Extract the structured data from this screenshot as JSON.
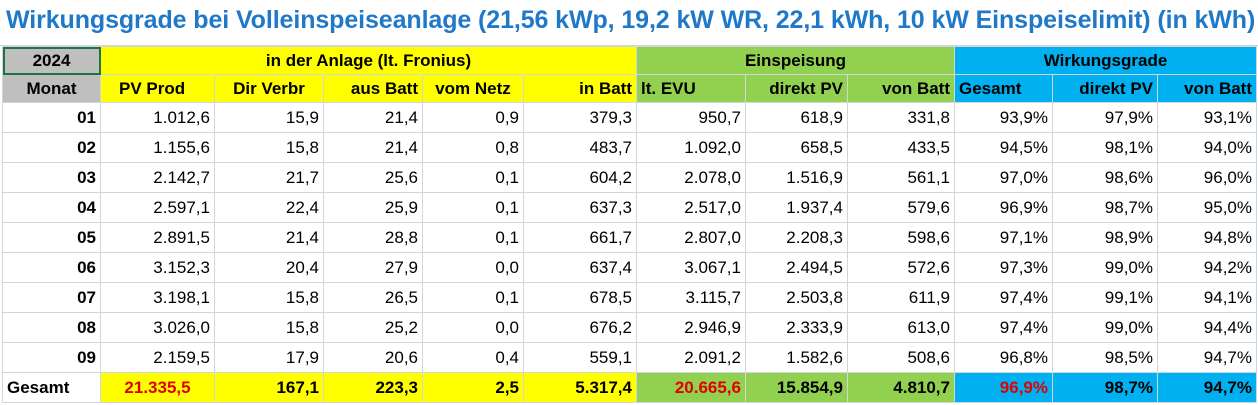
{
  "title": "Wirkungsgrade bei Volleinspeiseanlage (21,56 kWp, 19,2 kW WR, 22,1 kWh, 10 kW Einspeiselimit) (in kWh)",
  "header_row1": {
    "year": "2024",
    "group_anlage": "in der Anlage (lt. Fronius)",
    "group_einspeisung": "Einspeisung",
    "group_wirkungsgrade": "Wirkungsgrade"
  },
  "header_row2": [
    "Monat",
    "PV Prod",
    "Dir Verbr",
    "aus Batt",
    "vom Netz",
    "in Batt",
    "lt. EVU",
    "direkt PV",
    "von Batt",
    "Gesamt",
    "direkt PV",
    "von Batt"
  ],
  "rows": [
    [
      "01",
      "1.012,6",
      "15,9",
      "21,4",
      "0,9",
      "379,3",
      "950,7",
      "618,9",
      "331,8",
      "93,9%",
      "97,9%",
      "93,1%"
    ],
    [
      "02",
      "1.155,6",
      "15,8",
      "21,4",
      "0,8",
      "483,7",
      "1.092,0",
      "658,5",
      "433,5",
      "94,5%",
      "98,1%",
      "94,0%"
    ],
    [
      "03",
      "2.142,7",
      "21,7",
      "25,6",
      "0,1",
      "604,2",
      "2.078,0",
      "1.516,9",
      "561,1",
      "97,0%",
      "98,6%",
      "96,0%"
    ],
    [
      "04",
      "2.597,1",
      "22,4",
      "25,9",
      "0,1",
      "637,3",
      "2.517,0",
      "1.937,4",
      "579,6",
      "96,9%",
      "98,7%",
      "95,0%"
    ],
    [
      "05",
      "2.891,5",
      "21,4",
      "28,8",
      "0,1",
      "661,7",
      "2.807,0",
      "2.208,3",
      "598,6",
      "97,1%",
      "98,9%",
      "94,8%"
    ],
    [
      "06",
      "3.152,3",
      "20,4",
      "27,9",
      "0,0",
      "637,4",
      "3.067,1",
      "2.494,5",
      "572,6",
      "97,3%",
      "99,0%",
      "94,2%"
    ],
    [
      "07",
      "3.198,1",
      "15,8",
      "26,5",
      "0,1",
      "678,5",
      "3.115,7",
      "2.503,8",
      "611,9",
      "97,4%",
      "99,1%",
      "94,1%"
    ],
    [
      "08",
      "3.026,0",
      "15,8",
      "25,2",
      "0,0",
      "676,2",
      "2.946,9",
      "2.333,9",
      "613,0",
      "97,4%",
      "99,0%",
      "94,4%"
    ],
    [
      "09",
      "2.159,5",
      "17,9",
      "20,6",
      "0,4",
      "559,1",
      "2.091,2",
      "1.582,6",
      "508,6",
      "96,8%",
      "98,5%",
      "94,7%"
    ]
  ],
  "total": [
    "Gesamt",
    "21.335,5",
    "167,1",
    "223,3",
    "2,5",
    "5.317,4",
    "20.665,6",
    "15.854,9",
    "4.810,7",
    "96,9%",
    "98,7%",
    "94,7%"
  ],
  "colors": {
    "title": "#1f78c8",
    "yellow": "#ffff00",
    "green": "#92d050",
    "blue": "#00b0f0",
    "gray": "#bfbfbf",
    "red": "#e00000"
  }
}
